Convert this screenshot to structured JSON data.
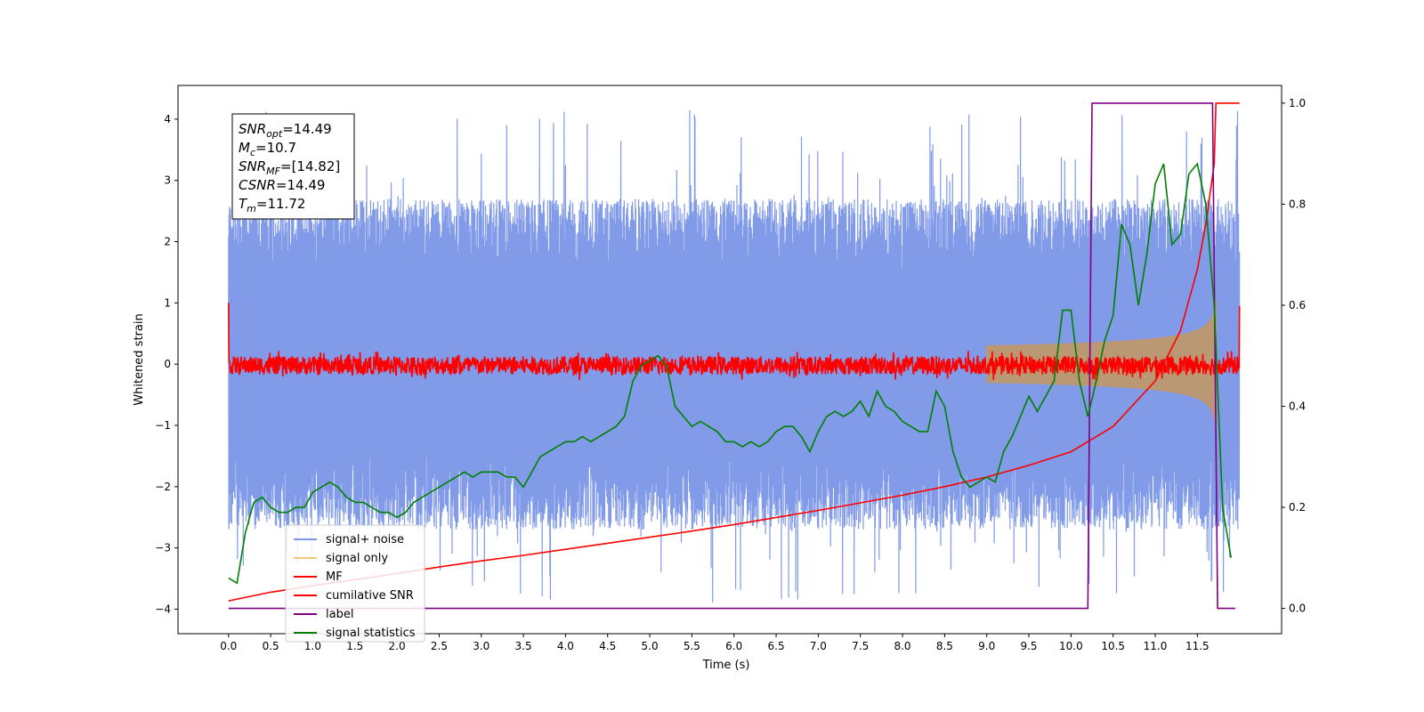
{
  "chart_data": {
    "type": "line",
    "xlabel": "Time (s)",
    "ylabel": "Whitened strain",
    "xlim": [
      -0.6,
      12.5
    ],
    "ylim": [
      -4.4,
      4.55
    ],
    "ylim_right": [
      -0.05,
      1.035
    ],
    "xticks": [
      "0.0",
      "0.5",
      "1.0",
      "1.5",
      "2.0",
      "2.5",
      "3.0",
      "3.5",
      "4.0",
      "4.5",
      "5.0",
      "5.5",
      "6.0",
      "6.5",
      "7.0",
      "7.5",
      "8.0",
      "8.5",
      "9.0",
      "9.5",
      "10.0",
      "10.5",
      "11.0",
      "11.5"
    ],
    "xtick_values": [
      0,
      0.5,
      1,
      1.5,
      2,
      2.5,
      3,
      3.5,
      4,
      4.5,
      5,
      5.5,
      6,
      6.5,
      7,
      7.5,
      8,
      8.5,
      9,
      9.5,
      10,
      10.5,
      11,
      11.5
    ],
    "yticks_left": [
      "−4",
      "−3",
      "−2",
      "−1",
      "0",
      "1",
      "2",
      "3",
      "4"
    ],
    "ytick_values_left": [
      -4,
      -3,
      -2,
      -1,
      0,
      1,
      2,
      3,
      4
    ],
    "yticks_right": [
      "0.0",
      "0.2",
      "0.4",
      "0.6",
      "0.8",
      "1.0"
    ],
    "ytick_values_right": [
      0,
      0.2,
      0.4,
      0.6,
      0.8,
      1.0
    ],
    "info_box": [
      {
        "name": "SNR",
        "sub": "opt",
        "value": "=14.49"
      },
      {
        "name": "M",
        "sub": "c",
        "value": "=10.7"
      },
      {
        "name": "SNR",
        "sub": "MF",
        "value": "=[14.82]"
      },
      {
        "name": "CSNR",
        "sub": "",
        "value": "=14.49"
      },
      {
        "name": "T",
        "sub": "m",
        "value": "=11.72"
      }
    ],
    "legend_position": "lower-left",
    "series": [
      {
        "name": "signal+ noise",
        "color": "#7b96e8",
        "axis": "left",
        "kind": "noise",
        "t_start": 0.0,
        "t_end": 12.0,
        "band_min": -2.7,
        "band_max": 2.7,
        "peak_max": 4.15,
        "peak_min": -3.9
      },
      {
        "name": "signal only",
        "color": "#f5c77a",
        "axis": "left",
        "kind": "chirp",
        "t_start": 9.0,
        "t_end": 11.72,
        "amplitude_end": 1.0
      },
      {
        "name": "MF",
        "color": "#ff0000",
        "axis": "left",
        "kind": "mf",
        "t_start": 0.0,
        "t_end": 12.0,
        "band": 0.15,
        "start_value": 1.0,
        "end_value": 0.95
      },
      {
        "name": "cumilative SNR",
        "color": "#ff0000",
        "axis": "right",
        "x": [
          0.0,
          0.5,
          1.0,
          1.5,
          2.0,
          2.5,
          3.0,
          3.5,
          4.0,
          4.5,
          5.0,
          5.5,
          6.0,
          6.5,
          7.0,
          7.5,
          8.0,
          8.5,
          9.0,
          9.5,
          10.0,
          10.5,
          11.0,
          11.3,
          11.5,
          11.6,
          11.7,
          11.72,
          12.0
        ],
        "y": [
          0.015,
          0.032,
          0.045,
          0.057,
          0.069,
          0.082,
          0.094,
          0.105,
          0.117,
          0.129,
          0.141,
          0.153,
          0.166,
          0.18,
          0.194,
          0.209,
          0.224,
          0.241,
          0.26,
          0.283,
          0.31,
          0.36,
          0.45,
          0.55,
          0.67,
          0.76,
          0.88,
          1.0,
          1.0
        ]
      },
      {
        "name": "label",
        "color": "#800080",
        "axis": "right",
        "x": [
          0.0,
          10.2,
          10.25,
          11.68,
          11.74,
          11.95
        ],
        "y": [
          0.0,
          0.0,
          1.0,
          1.0,
          0.0,
          0.0
        ]
      },
      {
        "name": "signal statistics",
        "color": "#008000",
        "axis": "right",
        "x": [
          0.0,
          0.1,
          0.2,
          0.3,
          0.4,
          0.5,
          0.6,
          0.7,
          0.8,
          0.9,
          1.0,
          1.1,
          1.2,
          1.3,
          1.4,
          1.5,
          1.6,
          1.7,
          1.8,
          1.9,
          2.0,
          2.1,
          2.2,
          2.3,
          2.4,
          2.5,
          2.6,
          2.7,
          2.8,
          2.9,
          3.0,
          3.1,
          3.2,
          3.3,
          3.4,
          3.5,
          3.6,
          3.7,
          3.8,
          3.9,
          4.0,
          4.1,
          4.2,
          4.3,
          4.4,
          4.5,
          4.6,
          4.7,
          4.8,
          4.9,
          5.0,
          5.1,
          5.2,
          5.3,
          5.4,
          5.5,
          5.6,
          5.7,
          5.8,
          5.9,
          6.0,
          6.1,
          6.2,
          6.3,
          6.4,
          6.5,
          6.6,
          6.7,
          6.8,
          6.9,
          7.0,
          7.1,
          7.2,
          7.3,
          7.4,
          7.5,
          7.6,
          7.7,
          7.8,
          7.9,
          8.0,
          8.1,
          8.2,
          8.3,
          8.4,
          8.5,
          8.6,
          8.7,
          8.8,
          8.9,
          9.0,
          9.1,
          9.2,
          9.3,
          9.4,
          9.5,
          9.6,
          9.7,
          9.8,
          9.9,
          10.0,
          10.1,
          10.2,
          10.3,
          10.4,
          10.5,
          10.6,
          10.7,
          10.8,
          10.9,
          11.0,
          11.1,
          11.2,
          11.3,
          11.4,
          11.5,
          11.6,
          11.7,
          11.8,
          11.9
        ],
        "y": [
          0.06,
          0.05,
          0.15,
          0.21,
          0.22,
          0.2,
          0.19,
          0.19,
          0.2,
          0.2,
          0.23,
          0.24,
          0.25,
          0.24,
          0.22,
          0.21,
          0.21,
          0.2,
          0.19,
          0.19,
          0.18,
          0.19,
          0.21,
          0.22,
          0.23,
          0.24,
          0.25,
          0.26,
          0.27,
          0.26,
          0.27,
          0.27,
          0.27,
          0.26,
          0.26,
          0.24,
          0.27,
          0.3,
          0.31,
          0.32,
          0.33,
          0.33,
          0.34,
          0.33,
          0.34,
          0.35,
          0.36,
          0.38,
          0.45,
          0.48,
          0.49,
          0.5,
          0.48,
          0.4,
          0.38,
          0.36,
          0.37,
          0.36,
          0.35,
          0.33,
          0.33,
          0.32,
          0.33,
          0.32,
          0.33,
          0.35,
          0.36,
          0.36,
          0.34,
          0.31,
          0.35,
          0.38,
          0.39,
          0.38,
          0.39,
          0.41,
          0.38,
          0.43,
          0.4,
          0.39,
          0.37,
          0.36,
          0.35,
          0.35,
          0.43,
          0.4,
          0.31,
          0.26,
          0.24,
          0.25,
          0.26,
          0.25,
          0.31,
          0.34,
          0.38,
          0.42,
          0.39,
          0.42,
          0.45,
          0.59,
          0.59,
          0.45,
          0.38,
          0.45,
          0.53,
          0.58,
          0.76,
          0.72,
          0.6,
          0.7,
          0.84,
          0.88,
          0.72,
          0.74,
          0.86,
          0.88,
          0.8,
          0.6,
          0.2,
          0.1
        ]
      }
    ]
  }
}
